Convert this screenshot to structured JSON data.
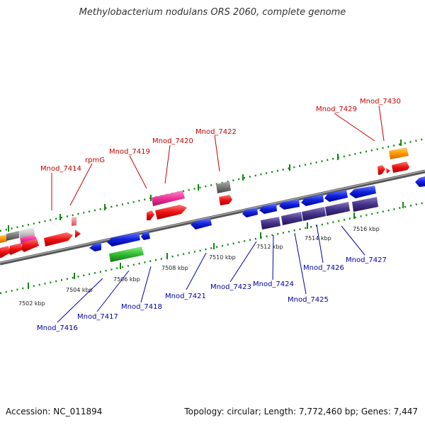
{
  "title": "Methylobacterium nodulans ORS 2060, complete genome",
  "footer": {
    "accession": "Accession: NC_011894",
    "summary": "Topology: circular; Length: 7,772,460 bp; Genes: 7,447"
  },
  "scale_labels": [
    "7502 kbp",
    "7504 kbp",
    "7506 kbp",
    "7508 kbp",
    "7510 kbp",
    "7512 kbp",
    "7514 kbp",
    "7516 kbp"
  ],
  "top_labels": [
    "Mnod_7414",
    "rpmG",
    "Mnod_7419",
    "Mnod_7420",
    "Mnod_7422",
    "Mnod_7429",
    "Mnod_7430"
  ],
  "bottom_labels": [
    "Mnod_7416",
    "Mnod_7417",
    "Mnod_7418",
    "Mnod_7421",
    "Mnod_7423",
    "Mnod_7424",
    "Mnod_7425",
    "Mnod_7426",
    "Mnod_7427"
  ],
  "colors": {
    "top_label": "#cc0000",
    "bottom_label": "#0000aa",
    "red_gene": "#ee1111",
    "blue_gene": "#1122dd",
    "purple_gene": "#443388",
    "pink_gene": "#ee3399",
    "green_gene": "#33bb33",
    "orange_gene": "#ff9900",
    "gray_gene": "#777777",
    "scale_dots": "#118811"
  }
}
